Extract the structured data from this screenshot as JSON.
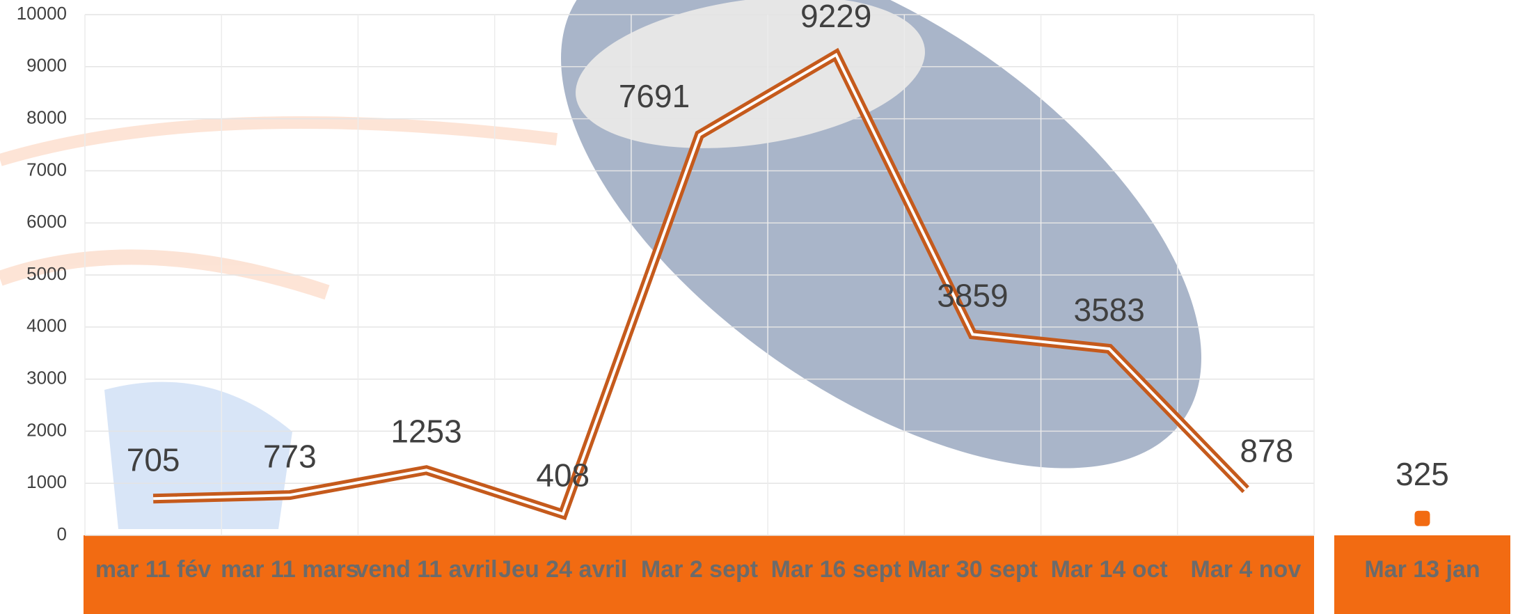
{
  "chart_data": [
    {
      "type": "line",
      "categories": [
        "mar 11 fév",
        "mar 11 mars",
        "vend 11 avril",
        "Jeu 24 avril",
        "Mar 2 sept",
        "Mar 16 sept",
        "Mar 30 sept",
        "Mar 14 oct",
        "Mar 4 nov"
      ],
      "values": [
        705,
        773,
        1253,
        408,
        7691,
        9229,
        3859,
        3583,
        878
      ],
      "color": "#c55a1c",
      "ylim": [
        0,
        10000
      ],
      "yticks": [
        0,
        1000,
        2000,
        3000,
        4000,
        5000,
        6000,
        7000,
        8000,
        9000,
        10000
      ],
      "grid": true
    },
    {
      "type": "point",
      "categories": [
        "Mar 13 jan"
      ],
      "values": [
        325
      ],
      "color": "#f26b12",
      "ylim": [
        0,
        10000
      ]
    }
  ]
}
